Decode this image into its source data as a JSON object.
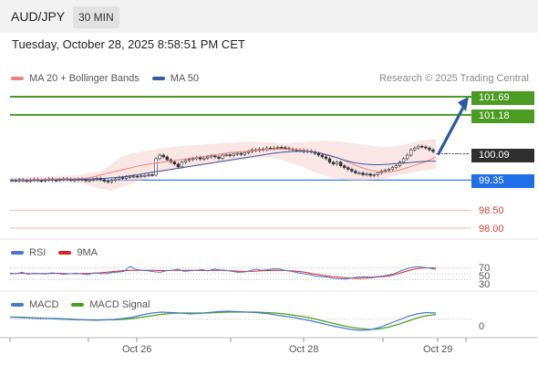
{
  "header": {
    "symbol": "AUD/JPY",
    "timeframe": "30 MIN"
  },
  "datetime": "Tuesday, October 28, 2025 8:58:51 PM CET",
  "credit": "Research © 2025 Trading Central",
  "colors": {
    "green": "#4a9c23",
    "blue": "#1e6fe8",
    "red": "#d04040",
    "dark": "#2f2f2f",
    "ma20": "#f08080",
    "ma50": "#3a5a9a",
    "rsi": "#4a78d0",
    "nine_ma": "#e02020",
    "macd": "#4a78d0",
    "macd_signal": "#4aa020",
    "arrow": "#2b5aa0"
  },
  "chart_data": [
    {
      "type": "candlestick",
      "legend": [
        {
          "name": "MA 20 + Bollinger Bands",
          "color": "#f08080"
        },
        {
          "name": "MA 50",
          "color": "#3a5a9a"
        }
      ],
      "levels": [
        {
          "label": "101.69",
          "value": 101.69,
          "style": "green"
        },
        {
          "label": "101.18",
          "value": 101.18,
          "style": "green"
        },
        {
          "label": "100.09",
          "value": 100.09,
          "style": "dark"
        },
        {
          "label": "99.35",
          "value": 99.35,
          "style": "blue"
        },
        {
          "label": "98.50",
          "value": 98.5,
          "style": "red"
        },
        {
          "label": "98.00",
          "value": 98.0,
          "style": "red"
        }
      ],
      "last_price": 100.09,
      "projection": {
        "from": 100.09,
        "to": 101.69,
        "direction": "up"
      },
      "close_series": [
        99.35,
        99.33,
        99.36,
        99.34,
        99.32,
        99.35,
        99.37,
        99.34,
        99.33,
        99.36,
        99.38,
        99.35,
        99.34,
        99.37,
        99.39,
        99.37,
        99.34,
        99.36,
        99.38,
        99.36,
        99.33,
        99.35,
        99.37,
        99.4,
        99.36,
        99.32,
        99.3,
        99.34,
        99.38,
        99.42,
        99.4,
        99.44,
        99.45,
        99.46,
        99.45,
        99.47,
        99.48,
        99.5,
        99.49,
        99.95,
        100.05,
        100.0,
        99.92,
        99.86,
        99.8,
        99.72,
        99.85,
        99.9,
        99.93,
        99.95,
        99.98,
        99.94,
        99.97,
        100.0,
        100.03,
        100.0,
        99.96,
        100.05,
        100.06,
        100.04,
        100.08,
        100.1,
        100.07,
        100.12,
        100.15,
        100.2,
        100.18,
        100.22,
        100.2,
        100.25,
        100.23,
        100.25,
        100.27,
        100.26,
        100.24,
        100.22,
        100.2,
        100.18,
        100.19,
        100.15,
        100.17,
        100.14,
        100.1,
        100.05,
        100.0,
        99.95,
        99.85,
        99.8,
        99.85,
        99.75,
        99.7,
        99.65,
        99.6,
        99.55,
        99.55,
        99.5,
        99.52,
        99.48,
        99.5,
        99.55,
        99.6,
        99.62,
        99.65,
        99.7,
        99.75,
        99.85,
        99.95,
        100.05,
        100.2,
        100.25,
        100.3,
        100.28,
        100.25,
        100.2,
        100.15
      ],
      "ma20": [
        99.33,
        99.34,
        99.35,
        99.36,
        99.36,
        99.37,
        99.38,
        99.38,
        99.38,
        99.39,
        99.4,
        99.44,
        99.5,
        99.55,
        99.6,
        99.65,
        99.7,
        99.75,
        99.79,
        99.82,
        99.85,
        99.88,
        99.91,
        99.94,
        99.97,
        100.0,
        100.03,
        100.06,
        100.09,
        100.12,
        100.14,
        100.16,
        100.18,
        100.2,
        100.21,
        100.22,
        100.22,
        100.21,
        100.2,
        100.18,
        100.14,
        100.1,
        100.05,
        99.98,
        99.9,
        99.8,
        99.72,
        99.65,
        99.6,
        99.57,
        99.58,
        99.62,
        99.68,
        99.75,
        99.82,
        99.9,
        100.0
      ],
      "ma50": [
        99.33,
        99.33,
        99.34,
        99.34,
        99.35,
        99.35,
        99.36,
        99.36,
        99.37,
        99.38,
        99.39,
        99.41,
        99.43,
        99.46,
        99.5,
        99.54,
        99.58,
        99.62,
        99.66,
        99.7,
        99.74,
        99.78,
        99.82,
        99.86,
        99.9,
        99.94,
        99.98,
        100.02,
        100.06,
        100.1,
        100.13,
        100.15,
        100.16,
        100.15,
        100.12,
        100.05,
        99.98,
        99.9,
        99.84,
        99.8,
        99.78,
        99.78,
        99.8,
        99.82,
        99.84,
        99.86,
        99.88,
        99.88
      ],
      "bb_upper": [
        99.4,
        99.42,
        99.44,
        99.45,
        99.46,
        99.47,
        99.48,
        99.5,
        99.55,
        99.6,
        99.8,
        100.0,
        100.1,
        100.15,
        100.2,
        100.24,
        100.28,
        100.31,
        100.33,
        100.35,
        100.37,
        100.39,
        100.4,
        100.42,
        100.43,
        100.42,
        100.4,
        100.38,
        100.4,
        100.42,
        100.44,
        100.45,
        100.44,
        100.42,
        100.38,
        100.34,
        100.3,
        100.28,
        100.3,
        100.35,
        100.42,
        100.48,
        100.5
      ],
      "bb_lower": [
        99.26,
        99.27,
        99.28,
        99.28,
        99.28,
        99.28,
        99.28,
        99.26,
        99.2,
        99.1,
        99.05,
        99.15,
        99.25,
        99.35,
        99.45,
        99.55,
        99.62,
        99.68,
        99.72,
        99.76,
        99.8,
        99.84,
        99.88,
        99.92,
        99.96,
        99.99,
        99.96,
        99.9,
        99.8,
        99.7,
        99.58,
        99.48,
        99.4,
        99.36,
        99.34,
        99.34,
        99.36,
        99.4,
        99.46,
        99.52,
        99.58,
        99.62,
        99.66
      ]
    },
    {
      "type": "line",
      "legend": [
        {
          "name": "RSI",
          "color": "#4a78d0"
        },
        {
          "name": "9MA",
          "color": "#e02020"
        }
      ],
      "levels": [
        {
          "label": "70",
          "value": 70
        },
        {
          "label": "50",
          "value": 50
        },
        {
          "label": "30",
          "value": 30
        }
      ],
      "rsi": [
        52,
        50,
        55,
        48,
        52,
        50,
        49,
        53,
        51,
        48,
        50,
        52,
        49,
        47,
        53,
        51,
        50,
        54,
        56,
        58,
        75,
        65,
        62,
        60,
        57,
        55,
        60,
        62,
        66,
        58,
        60,
        62,
        64,
        60,
        66,
        63,
        62,
        58,
        55,
        56,
        60,
        66,
        62,
        64,
        67,
        66,
        61,
        58,
        54,
        50,
        47,
        42,
        40,
        38,
        34,
        33,
        32,
        36,
        38,
        40,
        38,
        40,
        42,
        45,
        50,
        58,
        66,
        72,
        74,
        72,
        69,
        65
      ],
      "ma9": [
        50,
        51,
        52,
        51,
        50,
        51,
        51,
        51,
        52,
        51,
        50,
        50,
        51,
        51,
        52,
        53,
        55,
        57,
        59,
        61,
        62,
        62,
        62,
        62,
        62,
        61,
        61,
        62,
        62,
        62,
        62,
        62,
        61,
        61,
        62,
        62,
        61,
        60,
        59,
        58,
        58,
        59,
        60,
        61,
        62,
        62,
        61,
        60,
        58,
        56,
        52,
        48,
        45,
        42,
        40,
        38,
        36,
        35,
        34,
        35,
        36,
        38,
        40,
        42,
        46,
        52,
        58,
        64,
        68,
        70,
        70,
        70
      ],
      "ylim": [
        0,
        100
      ]
    },
    {
      "type": "line",
      "legend": [
        {
          "name": "MACD",
          "color": "#4a78d0"
        },
        {
          "name": "MACD Signal",
          "color": "#4aa020"
        }
      ],
      "levels": [
        {
          "label": "0",
          "value": 0
        }
      ],
      "macd": [
        0.05,
        0.04,
        0.03,
        0.02,
        0.02,
        0.01,
        0.0,
        -0.01,
        -0.01,
        -0.02,
        -0.01,
        0.0,
        0.02,
        0.05,
        0.1,
        0.14,
        0.16,
        0.15,
        0.14,
        0.12,
        0.13,
        0.15,
        0.17,
        0.18,
        0.17,
        0.16,
        0.15,
        0.13,
        0.1,
        0.07,
        0.04,
        0.0,
        -0.04,
        -0.09,
        -0.14,
        -0.18,
        -0.22,
        -0.24,
        -0.23,
        -0.18,
        -0.1,
        -0.02,
        0.06,
        0.12,
        0.15,
        0.14
      ],
      "signal": [
        0.05,
        0.05,
        0.04,
        0.03,
        0.02,
        0.02,
        0.01,
        0.0,
        -0.01,
        -0.01,
        -0.01,
        -0.01,
        0.0,
        0.02,
        0.05,
        0.08,
        0.11,
        0.13,
        0.14,
        0.14,
        0.14,
        0.14,
        0.15,
        0.16,
        0.16,
        0.16,
        0.16,
        0.15,
        0.14,
        0.12,
        0.09,
        0.06,
        0.02,
        -0.03,
        -0.08,
        -0.13,
        -0.17,
        -0.2,
        -0.22,
        -0.21,
        -0.17,
        -0.11,
        -0.04,
        0.03,
        0.08,
        0.11
      ]
    }
  ],
  "x_axis": {
    "ticks": [
      "Oct 26",
      "Oct 28",
      "Oct 29"
    ]
  }
}
